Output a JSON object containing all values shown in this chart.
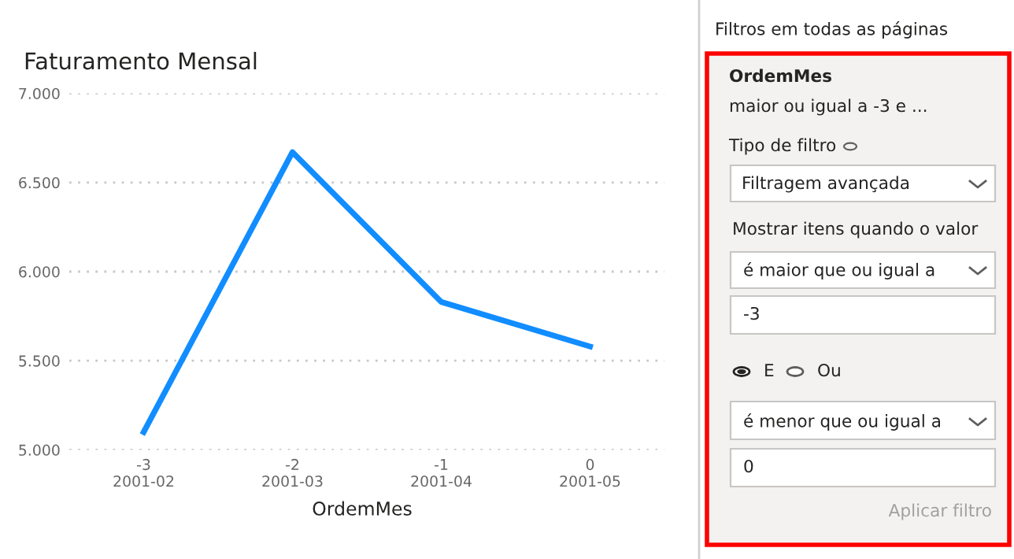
{
  "chart_data": [
    {
      "type": "line",
      "title": "Faturamento Mensal",
      "xlabel": "OrdemMes",
      "categories": [
        "-3\n2001-02",
        "-2\n2001-03",
        "-1\n2001-04",
        "0\n2001-05"
      ],
      "series": [
        {
          "color": "#118dff",
          "values": [
            5100,
            6670,
            5830,
            5580
          ]
        }
      ],
      "ylim": [
        5000,
        7000
      ],
      "yticks": [
        {
          "value": 5000,
          "label": "5.000"
        },
        {
          "value": 5500,
          "label": "5.500"
        },
        {
          "value": 6000,
          "label": "6.000"
        },
        {
          "value": 6500,
          "label": "6.500"
        },
        {
          "value": 7000,
          "label": "7.000"
        }
      ],
      "grid": "y",
      "legend": false,
      "marker": "none",
      "line_style": "solid"
    },
    {
      "type": "other",
      "annotations": [
        "Filtros em todas as páginas",
        "OrdemMes",
        "maior ou igual a -3 e ...",
        "Tipo de filtro",
        "Filtragem avançada",
        "Mostrar itens quando o valor",
        "é maior que ou igual a",
        "-3",
        "E",
        "Ou",
        "é menor que ou igual a",
        "0",
        "Aplicar filtro"
      ]
    }
  ]
}
